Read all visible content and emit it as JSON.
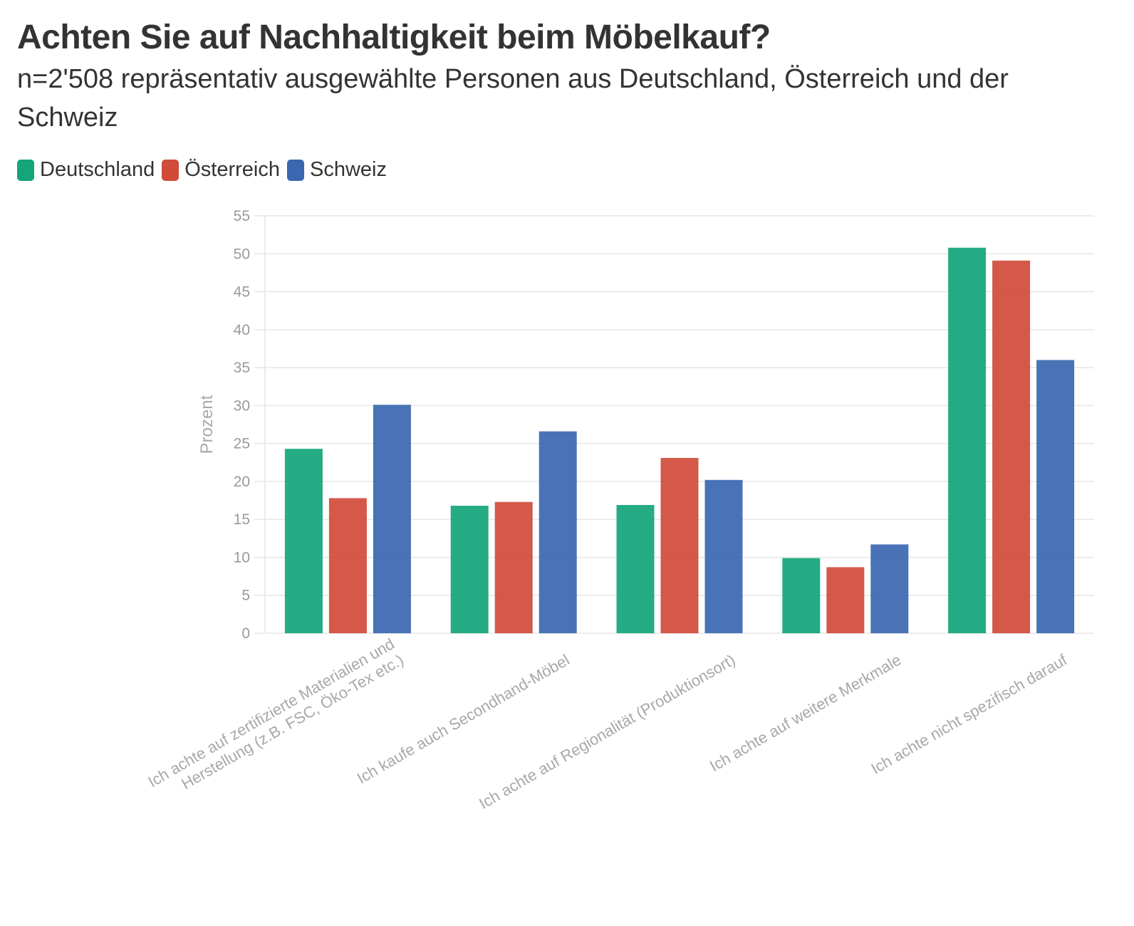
{
  "title": "Achten Sie auf Nachhaltigkeit beim Möbelkauf?",
  "subtitle": "n=2'508 repräsentativ ausgewählte Personen aus Deutschland, Österreich und der Schweiz",
  "colors": {
    "Deutschland": "#14a57a",
    "Österreich": "#d04b3a",
    "Schweiz": "#3a67b0",
    "grid": "#e6e6e6",
    "text": "#333333"
  },
  "chart_data": {
    "type": "bar",
    "title": "Achten Sie auf Nachhaltigkeit beim Möbelkauf?",
    "subtitle": "n=2'508 repräsentativ ausgewählte Personen aus Deutschland, Österreich und der Schweiz",
    "ylabel": "Prozent",
    "xlabel": "",
    "ylim": [
      0,
      55
    ],
    "yticks": [
      0,
      5,
      10,
      15,
      20,
      25,
      30,
      35,
      40,
      45,
      50,
      55
    ],
    "grid": true,
    "legend_position": "top-left",
    "categories": [
      [
        "Ich achte auf zertifizierte Materialien und",
        "Herstellung (z.B. FSC, Öko-Tex etc.)"
      ],
      [
        "Ich kaufe auch Secondhand-Möbel"
      ],
      [
        "Ich achte auf Regionalität (Produktionsort)"
      ],
      [
        "Ich achte auf weitere Merkmale"
      ],
      [
        "Ich achte nicht spezifisch darauf"
      ]
    ],
    "series": [
      {
        "name": "Deutschland",
        "values": [
          24.3,
          16.8,
          16.9,
          9.9,
          50.8
        ]
      },
      {
        "name": "Österreich",
        "values": [
          17.8,
          17.3,
          23.1,
          8.7,
          49.1
        ]
      },
      {
        "name": "Schweiz",
        "values": [
          30.1,
          26.6,
          20.2,
          11.7,
          36.0
        ]
      }
    ]
  }
}
